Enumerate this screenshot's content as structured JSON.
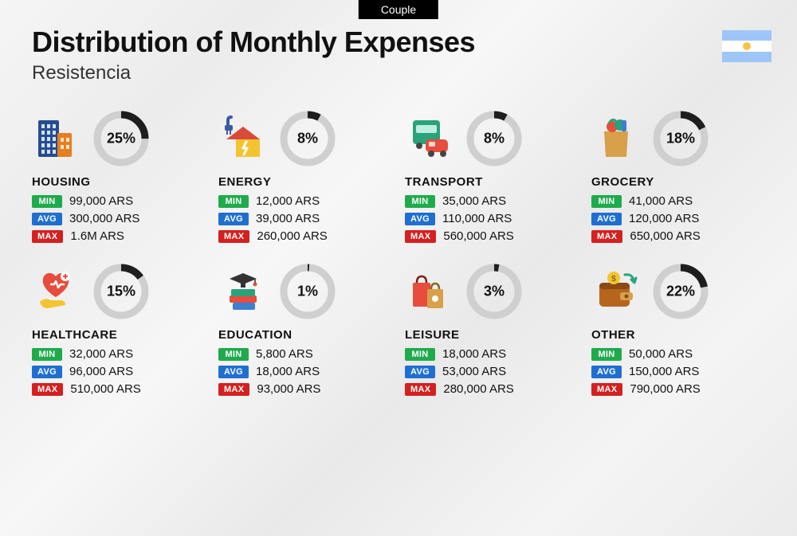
{
  "badge": "Couple",
  "title": "Distribution of Monthly Expenses",
  "subtitle": "Resistencia",
  "flag_colors": {
    "stripe": "#9ec5f7",
    "mid": "#ffffff",
    "sun": "#f5c542"
  },
  "donut": {
    "track_color": "#cfcfcf",
    "fill_color": "#1e1e1e",
    "stroke_width": 9,
    "radius": 30
  },
  "stat_badges": {
    "min": {
      "label": "MIN",
      "bg": "#1fab4c"
    },
    "avg": {
      "label": "AVG",
      "bg": "#1f6fd1"
    },
    "max": {
      "label": "MAX",
      "bg": "#d42020"
    }
  },
  "currency": "ARS",
  "categories": [
    {
      "key": "housing",
      "name": "HOUSING",
      "pct": 25,
      "min": "99,000",
      "avg": "300,000",
      "max": "1.6M",
      "icon": "building"
    },
    {
      "key": "energy",
      "name": "ENERGY",
      "pct": 8,
      "min": "12,000",
      "avg": "39,000",
      "max": "260,000",
      "icon": "plug-house"
    },
    {
      "key": "transport",
      "name": "TRANSPORT",
      "pct": 8,
      "min": "35,000",
      "avg": "110,000",
      "max": "560,000",
      "icon": "bus-car"
    },
    {
      "key": "grocery",
      "name": "GROCERY",
      "pct": 18,
      "min": "41,000",
      "avg": "120,000",
      "max": "650,000",
      "icon": "grocery-bag"
    },
    {
      "key": "healthcare",
      "name": "HEALTHCARE",
      "pct": 15,
      "min": "32,000",
      "avg": "96,000",
      "max": "510,000",
      "icon": "heart-hand"
    },
    {
      "key": "education",
      "name": "EDUCATION",
      "pct": 1,
      "min": "5,800",
      "avg": "18,000",
      "max": "93,000",
      "icon": "grad-books"
    },
    {
      "key": "leisure",
      "name": "LEISURE",
      "pct": 3,
      "min": "18,000",
      "avg": "53,000",
      "max": "280,000",
      "icon": "shopping-bags"
    },
    {
      "key": "other",
      "name": "OTHER",
      "pct": 22,
      "min": "50,000",
      "avg": "150,000",
      "max": "790,000",
      "icon": "wallet"
    }
  ],
  "icons": {
    "building": {
      "bg": "#274b8f",
      "accent": "#e67e22"
    },
    "plug-house": {
      "bg": "#f4c430",
      "accent": "#3b5ba5"
    },
    "bus-car": {
      "bg": "#2aa37a",
      "accent": "#e74c3c"
    },
    "grocery-bag": {
      "bg": "#d8a04a",
      "accent": "#2aa37a"
    },
    "heart-hand": {
      "bg": "#e74c3c",
      "accent": "#f4c430"
    },
    "grad-books": {
      "bg": "#2aa37a",
      "accent": "#e74c3c"
    },
    "shopping-bags": {
      "bg": "#e74c3c",
      "accent": "#d8a04a"
    },
    "wallet": {
      "bg": "#b5651d",
      "accent": "#2aa37a"
    }
  }
}
